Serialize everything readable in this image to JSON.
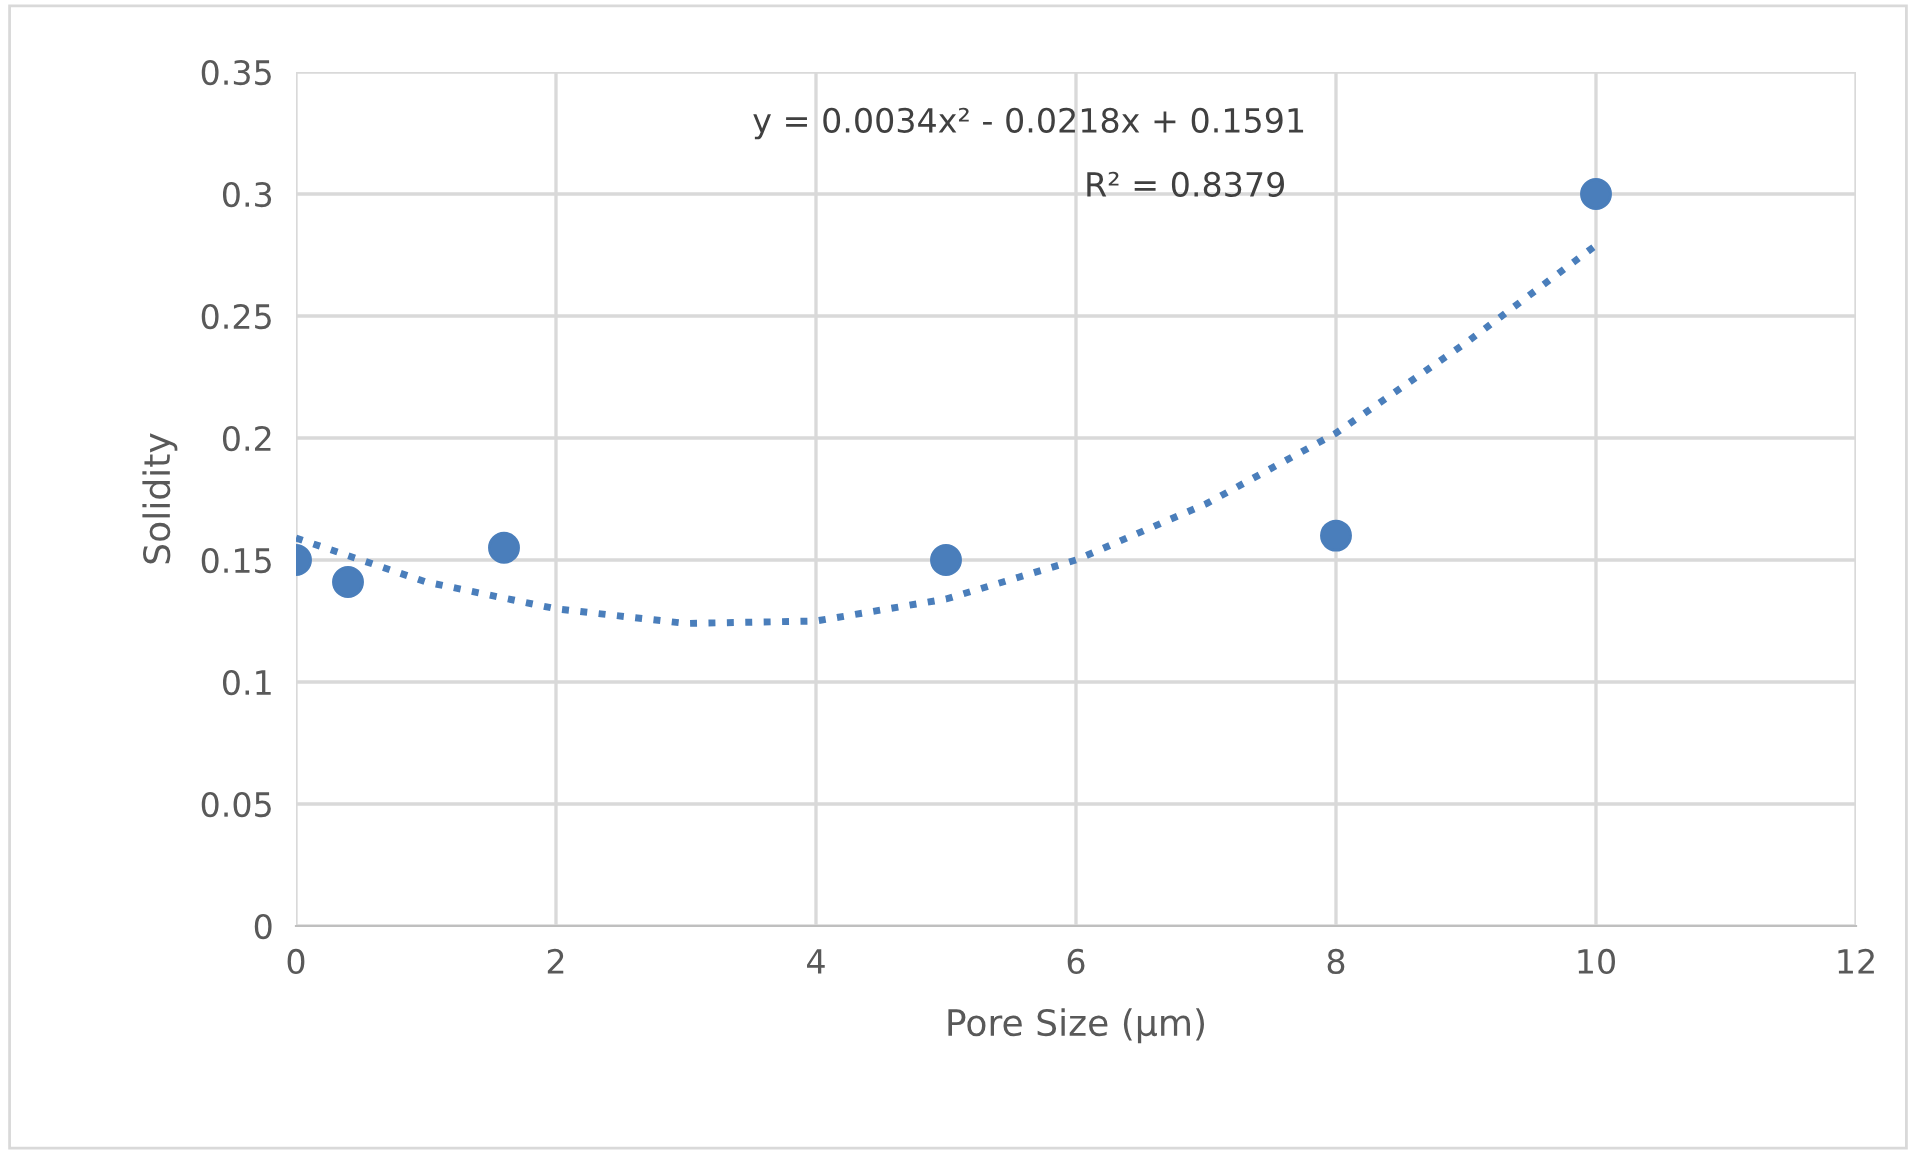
{
  "chart_data": {
    "type": "scatter",
    "xlabel": "Pore Size (µm)",
    "ylabel": "Solidity",
    "annotations": [
      "y = 0.0034x² - 0.0218x + 0.1591",
      "R² = 0.8379"
    ],
    "xlim": [
      0,
      12
    ],
    "ylim": [
      0,
      0.35
    ],
    "xticks": [
      0,
      2,
      4,
      6,
      8,
      10,
      12
    ],
    "yticks": [
      0,
      0.05,
      0.1,
      0.15,
      0.2,
      0.25,
      0.3,
      0.35
    ],
    "grid": true,
    "marker": "circle",
    "legend": false,
    "series": [
      {
        "color": "#4a7ebb",
        "x": [
          0,
          0.4,
          1.6,
          5,
          8,
          10
        ],
        "values": [
          0.15,
          0.141,
          0.155,
          0.15,
          0.16,
          0.3
        ]
      },
      {
        "type": "line",
        "color": "#4a7ebb",
        "line_style": "dotted",
        "marker": "none",
        "x": [
          0,
          1,
          2,
          3,
          4,
          5,
          6,
          7,
          8,
          9,
          10
        ],
        "values": [
          0.159,
          0.141,
          0.13,
          0.124,
          0.125,
          0.134,
          0.15,
          0.173,
          0.202,
          0.239,
          0.279
        ]
      }
    ]
  }
}
